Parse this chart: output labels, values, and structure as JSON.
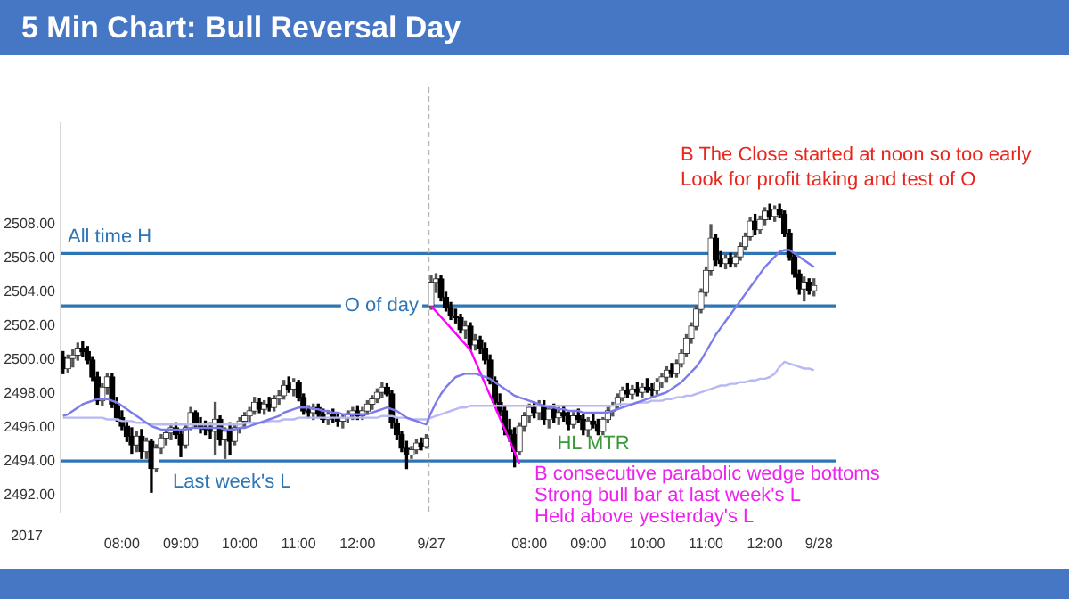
{
  "chart_data": {
    "type": "candlestick",
    "title": "5 Min Chart: Bull Reversal Day",
    "categories": [
      null,
      null,
      null,
      null,
      null,
      null,
      null,
      null,
      null,
      null,
      null,
      null,
      "08:00",
      null,
      null,
      null,
      null,
      null,
      null,
      null,
      null,
      null,
      null,
      null,
      "09:00",
      null,
      null,
      null,
      null,
      null,
      null,
      null,
      null,
      null,
      null,
      null,
      "10:00",
      null,
      null,
      null,
      null,
      null,
      null,
      null,
      null,
      null,
      null,
      null,
      "11:00",
      null,
      null,
      null,
      null,
      null,
      null,
      null,
      null,
      null,
      null,
      null,
      "12:00",
      null,
      null,
      null,
      null,
      null,
      null,
      null,
      null,
      null,
      null,
      null,
      null,
      null,
      null,
      "9/27",
      null,
      null,
      null,
      null,
      null,
      null,
      null,
      null,
      null,
      null,
      null,
      null,
      null,
      null,
      null,
      null,
      null,
      null,
      null,
      "08:00",
      null,
      null,
      null,
      null,
      null,
      null,
      null,
      null,
      null,
      null,
      null,
      "09:00",
      null,
      null,
      null,
      null,
      null,
      null,
      null,
      null,
      null,
      null,
      null,
      "10:00",
      null,
      null,
      null,
      null,
      null,
      null,
      null,
      null,
      null,
      null,
      null,
      "11:00",
      null,
      null,
      null,
      null,
      null,
      null,
      null,
      null,
      null,
      null,
      null,
      "12:00",
      null,
      null,
      null,
      null,
      null,
      null,
      null,
      null,
      null,
      null,
      "9/28"
    ],
    "ohlc": [
      [
        2500.2,
        2500.5,
        2499.2,
        2499.5
      ],
      [
        2499.5,
        2500.3,
        2499.3,
        2500.1
      ],
      [
        2500.1,
        2500.6,
        2499.6,
        2500.3
      ],
      [
        2500.3,
        2501.0,
        2500.0,
        2500.7
      ],
      [
        2500.7,
        2501.1,
        2500.2,
        2500.5
      ],
      [
        2500.5,
        2500.8,
        2499.8,
        2500.0
      ],
      [
        2500.0,
        2500.2,
        2498.8,
        2499.0
      ],
      [
        2499.0,
        2499.3,
        2497.4,
        2497.6
      ],
      [
        2497.6,
        2498.6,
        2497.3,
        2498.4
      ],
      [
        2498.4,
        2499.2,
        2498.0,
        2499.0
      ],
      [
        2499.0,
        2499.2,
        2497.2,
        2497.4
      ],
      [
        2497.4,
        2497.8,
        2496.4,
        2496.6
      ],
      [
        2496.6,
        2497.0,
        2495.9,
        2496.1
      ],
      [
        2496.1,
        2496.4,
        2495.2,
        2495.5
      ],
      [
        2495.5,
        2496.0,
        2494.5,
        2495.0
      ],
      [
        2495.0,
        2495.8,
        2494.6,
        2495.5
      ],
      [
        2495.5,
        2495.9,
        2494.2,
        2494.6
      ],
      [
        2494.6,
        2495.4,
        2494.2,
        2495.2
      ],
      [
        2495.2,
        2495.3,
        2492.2,
        2493.6
      ],
      [
        2493.6,
        2495.0,
        2493.4,
        2494.8
      ],
      [
        2494.8,
        2495.6,
        2494.5,
        2495.4
      ],
      [
        2495.4,
        2495.9,
        2495.0,
        2495.7
      ],
      [
        2495.7,
        2496.2,
        2495.3,
        2496.0
      ],
      [
        2496.0,
        2496.3,
        2495.4,
        2495.6
      ],
      [
        2495.6,
        2495.8,
        2494.3,
        2495.0
      ],
      [
        2495.0,
        2496.2,
        2494.8,
        2496.0
      ],
      [
        2496.0,
        2497.2,
        2495.9,
        2496.9
      ],
      [
        2496.9,
        2497.0,
        2496.0,
        2496.2
      ],
      [
        2496.2,
        2496.6,
        2495.7,
        2496.0
      ],
      [
        2496.0,
        2496.4,
        2495.6,
        2495.9
      ],
      [
        2495.9,
        2496.3,
        2495.4,
        2495.8
      ],
      [
        2495.8,
        2497.5,
        2494.4,
        2496.5
      ],
      [
        2496.5,
        2496.7,
        2495.0,
        2495.3
      ],
      [
        2495.3,
        2496.0,
        2494.2,
        2495.8
      ],
      [
        2495.8,
        2496.3,
        2494.4,
        2495.2
      ],
      [
        2495.2,
        2496.2,
        2495.0,
        2496.0
      ],
      [
        2496.0,
        2496.6,
        2495.7,
        2496.4
      ],
      [
        2496.4,
        2496.9,
        2496.1,
        2496.7
      ],
      [
        2496.7,
        2497.2,
        2496.4,
        2497.0
      ],
      [
        2497.0,
        2497.8,
        2496.8,
        2497.5
      ],
      [
        2497.5,
        2497.7,
        2496.9,
        2497.1
      ],
      [
        2497.1,
        2497.6,
        2496.8,
        2497.4
      ],
      [
        2497.4,
        2497.8,
        2497.0,
        2497.2
      ],
      [
        2497.2,
        2497.9,
        2497.0,
        2497.7
      ],
      [
        2497.7,
        2498.2,
        2497.4,
        2497.9
      ],
      [
        2497.9,
        2498.8,
        2497.7,
        2498.5
      ],
      [
        2498.5,
        2499.0,
        2498.1,
        2498.3
      ],
      [
        2498.3,
        2498.9,
        2497.9,
        2498.7
      ],
      [
        2498.7,
        2498.8,
        2497.6,
        2497.8
      ],
      [
        2497.8,
        2498.0,
        2496.8,
        2497.0
      ],
      [
        2497.0,
        2497.3,
        2496.6,
        2496.9
      ],
      [
        2496.9,
        2497.4,
        2496.5,
        2497.2
      ],
      [
        2497.2,
        2497.4,
        2496.6,
        2496.8
      ],
      [
        2496.8,
        2497.1,
        2496.3,
        2496.5
      ],
      [
        2496.5,
        2497.0,
        2496.2,
        2496.8
      ],
      [
        2496.8,
        2497.1,
        2496.3,
        2496.6
      ],
      [
        2496.6,
        2496.9,
        2496.1,
        2496.4
      ],
      [
        2496.4,
        2496.8,
        2496.0,
        2496.6
      ],
      [
        2496.6,
        2497.0,
        2496.3,
        2496.8
      ],
      [
        2496.8,
        2497.2,
        2496.5,
        2497.0
      ],
      [
        2497.0,
        2497.3,
        2496.5,
        2496.7
      ],
      [
        2496.7,
        2497.2,
        2496.5,
        2497.0
      ],
      [
        2497.0,
        2497.6,
        2496.8,
        2497.4
      ],
      [
        2497.4,
        2497.9,
        2497.1,
        2497.7
      ],
      [
        2497.7,
        2498.3,
        2497.5,
        2498.1
      ],
      [
        2498.1,
        2498.7,
        2497.8,
        2498.4
      ],
      [
        2498.4,
        2498.6,
        2497.9,
        2498.0
      ],
      [
        2498.0,
        2498.2,
        2496.0,
        2496.3
      ],
      [
        2496.3,
        2496.6,
        2495.3,
        2495.6
      ],
      [
        2495.6,
        2495.8,
        2494.6,
        2494.8
      ],
      [
        2494.8,
        2495.2,
        2493.6,
        2494.4
      ],
      [
        2494.4,
        2494.9,
        2494.2,
        2494.7
      ],
      [
        2494.7,
        2495.3,
        2494.5,
        2495.1
      ],
      [
        2495.1,
        2495.4,
        2494.7,
        2494.9
      ],
      [
        2494.9,
        2495.6,
        2494.8,
        2495.4
      ],
      [
        2503.2,
        2505.0,
        2503.0,
        2504.6
      ],
      [
        2504.6,
        2505.1,
        2504.0,
        2504.8
      ],
      [
        2504.8,
        2505.0,
        2503.5,
        2503.7
      ],
      [
        2503.7,
        2504.0,
        2502.9,
        2503.1
      ],
      [
        2503.1,
        2503.4,
        2502.4,
        2502.6
      ],
      [
        2502.6,
        2503.0,
        2502.2,
        2502.5
      ],
      [
        2502.5,
        2502.7,
        2501.6,
        2501.8
      ],
      [
        2501.8,
        2502.3,
        2501.3,
        2502.0
      ],
      [
        2502.0,
        2502.2,
        2500.6,
        2500.9
      ],
      [
        2500.9,
        2501.5,
        2500.6,
        2501.2
      ],
      [
        2501.2,
        2501.4,
        2500.4,
        2500.7
      ],
      [
        2500.7,
        2501.0,
        2499.8,
        2500.0
      ],
      [
        2500.0,
        2500.3,
        2498.6,
        2498.8
      ],
      [
        2498.8,
        2499.0,
        2497.2,
        2497.5
      ],
      [
        2497.5,
        2498.0,
        2496.7,
        2497.0
      ],
      [
        2497.0,
        2497.3,
        2495.6,
        2495.9
      ],
      [
        2495.9,
        2496.5,
        2495.2,
        2495.6
      ],
      [
        2495.6,
        2496.0,
        2493.7,
        2494.6
      ],
      [
        2494.6,
        2496.3,
        2494.4,
        2496.1
      ],
      [
        2496.1,
        2496.9,
        2495.8,
        2496.7
      ],
      [
        2496.7,
        2497.4,
        2496.3,
        2497.2
      ],
      [
        2497.2,
        2497.5,
        2496.6,
        2496.9
      ],
      [
        2496.9,
        2497.6,
        2496.5,
        2497.3
      ],
      [
        2497.3,
        2497.6,
        2496.2,
        2496.5
      ],
      [
        2496.5,
        2497.3,
        2496.0,
        2497.1
      ],
      [
        2497.1,
        2497.4,
        2496.3,
        2496.6
      ],
      [
        2496.6,
        2497.2,
        2496.2,
        2496.9
      ],
      [
        2496.9,
        2497.3,
        2496.4,
        2496.7
      ],
      [
        2496.7,
        2497.0,
        2495.9,
        2496.2
      ],
      [
        2496.2,
        2496.9,
        2496.0,
        2496.7
      ],
      [
        2496.7,
        2497.1,
        2496.3,
        2496.5
      ],
      [
        2496.5,
        2496.8,
        2495.6,
        2495.9
      ],
      [
        2495.9,
        2496.6,
        2495.5,
        2496.4
      ],
      [
        2496.4,
        2496.9,
        2496.0,
        2496.2
      ],
      [
        2496.2,
        2496.5,
        2495.6,
        2495.8
      ],
      [
        2495.8,
        2496.6,
        2495.6,
        2496.5
      ],
      [
        2496.5,
        2497.2,
        2496.3,
        2497.0
      ],
      [
        2497.0,
        2497.5,
        2496.7,
        2497.3
      ],
      [
        2497.3,
        2498.0,
        2497.1,
        2497.8
      ],
      [
        2497.8,
        2498.4,
        2497.6,
        2498.2
      ],
      [
        2498.2,
        2498.6,
        2497.8,
        2498.0
      ],
      [
        2498.0,
        2498.5,
        2497.7,
        2498.3
      ],
      [
        2498.3,
        2498.7,
        2497.9,
        2498.1
      ],
      [
        2498.1,
        2498.6,
        2497.8,
        2498.4
      ],
      [
        2498.4,
        2498.9,
        2498.1,
        2498.3
      ],
      [
        2498.3,
        2498.6,
        2497.9,
        2498.2
      ],
      [
        2498.2,
        2498.9,
        2498.0,
        2498.7
      ],
      [
        2498.7,
        2499.2,
        2498.4,
        2499.0
      ],
      [
        2499.0,
        2499.6,
        2498.7,
        2499.4
      ],
      [
        2499.4,
        2499.8,
        2499.0,
        2499.2
      ],
      [
        2499.2,
        2500.0,
        2499.0,
        2499.8
      ],
      [
        2499.8,
        2500.6,
        2499.6,
        2500.4
      ],
      [
        2500.4,
        2501.5,
        2500.2,
        2501.3
      ],
      [
        2501.3,
        2502.2,
        2501.0,
        2502.0
      ],
      [
        2502.0,
        2503.2,
        2501.8,
        2503.0
      ],
      [
        2503.0,
        2504.2,
        2502.8,
        2504.0
      ],
      [
        2504.0,
        2505.5,
        2503.8,
        2505.3
      ],
      [
        2505.3,
        2508.0,
        2505.0,
        2507.2
      ],
      [
        2507.2,
        2507.4,
        2505.6,
        2505.9
      ],
      [
        2505.9,
        2506.4,
        2505.5,
        2505.7
      ],
      [
        2505.7,
        2506.2,
        2505.4,
        2506.0
      ],
      [
        2506.0,
        2506.3,
        2505.5,
        2505.7
      ],
      [
        2505.7,
        2506.3,
        2505.5,
        2506.1
      ],
      [
        2506.1,
        2506.9,
        2505.9,
        2506.7
      ],
      [
        2506.7,
        2507.5,
        2506.5,
        2507.3
      ],
      [
        2507.3,
        2508.4,
        2507.1,
        2508.2
      ],
      [
        2508.2,
        2508.6,
        2507.4,
        2507.7
      ],
      [
        2507.7,
        2508.5,
        2507.5,
        2508.3
      ],
      [
        2508.3,
        2509.0,
        2508.0,
        2508.8
      ],
      [
        2508.8,
        2509.2,
        2508.3,
        2508.5
      ],
      [
        2508.5,
        2509.1,
        2508.2,
        2508.9
      ],
      [
        2508.9,
        2509.2,
        2508.4,
        2508.6
      ],
      [
        2508.6,
        2508.8,
        2507.3,
        2507.5
      ],
      [
        2507.5,
        2507.7,
        2505.9,
        2506.1
      ],
      [
        2506.1,
        2506.3,
        2504.9,
        2505.1
      ],
      [
        2505.1,
        2505.3,
        2503.9,
        2504.2
      ],
      [
        2504.2,
        2504.9,
        2503.5,
        2504.6
      ],
      [
        2504.6,
        2504.8,
        2503.9,
        2504.1
      ],
      [
        2504.1,
        2504.8,
        2503.8,
        2504.4
      ],
      null
    ],
    "series": [
      {
        "type": "line",
        "color": "#7b7bea",
        "values": [
          2496.7,
          2496.8,
          2497.0,
          2497.2,
          2497.4,
          2497.5,
          2497.6,
          2497.7,
          2497.7,
          2497.7,
          2497.6,
          2497.5,
          2497.3,
          2497.1,
          2496.9,
          2496.7,
          2496.5,
          2496.3,
          2496.1,
          2496.0,
          2495.9,
          2495.9,
          2495.9,
          2495.9,
          2495.9,
          2495.9,
          2496.0,
          2496.0,
          2496.0,
          2496.0,
          2496.0,
          2496.0,
          2496.0,
          2495.9,
          2495.9,
          2495.9,
          2496.0,
          2496.0,
          2496.1,
          2496.2,
          2496.3,
          2496.4,
          2496.5,
          2496.6,
          2496.7,
          2496.9,
          2497.0,
          2497.1,
          2497.2,
          2497.2,
          2497.2,
          2497.1,
          2497.1,
          2497.0,
          2497.0,
          2496.9,
          2496.9,
          2496.8,
          2496.8,
          2496.8,
          2496.8,
          2496.8,
          2496.8,
          2496.9,
          2497.0,
          2497.1,
          2497.2,
          2497.1,
          2497.0,
          2496.8,
          2496.6,
          2496.5,
          2496.4,
          2496.3,
          2496.2,
          2496.9,
          2497.5,
          2498.0,
          2498.4,
          2498.7,
          2499.0,
          2499.1,
          2499.2,
          2499.2,
          2499.2,
          2499.1,
          2499.0,
          2498.9,
          2498.7,
          2498.5,
          2498.3,
          2498.1,
          2497.9,
          2497.8,
          2497.7,
          2497.6,
          2497.5,
          2497.4,
          2497.3,
          2497.2,
          2497.2,
          2497.1,
          2497.1,
          2497.0,
          2497.0,
          2497.0,
          2496.9,
          2496.9,
          2496.9,
          2496.9,
          2496.9,
          2496.9,
          2497.0,
          2497.1,
          2497.2,
          2497.3,
          2497.4,
          2497.5,
          2497.6,
          2497.7,
          2497.8,
          2497.9,
          2498.0,
          2498.1,
          2498.3,
          2498.5,
          2498.7,
          2499.0,
          2499.3,
          2499.6,
          2500.0,
          2500.5,
          2501.0,
          2501.5,
          2501.9,
          2502.3,
          2502.7,
          2503.1,
          2503.5,
          2503.9,
          2504.3,
          2504.7,
          2505.1,
          2505.5,
          2505.8,
          2506.1,
          2506.4,
          2506.5,
          2506.5,
          2506.3,
          2506.1,
          2505.9,
          2505.7,
          2505.5,
          null
        ]
      },
      {
        "type": "line",
        "color": "#b8b8f4",
        "values": [
          2496.6,
          2496.6,
          2496.6,
          2496.6,
          2496.6,
          2496.6,
          2496.6,
          2496.6,
          2496.6,
          2496.5,
          2496.5,
          2496.5,
          2496.4,
          2496.4,
          2496.4,
          2496.3,
          2496.3,
          2496.3,
          2496.2,
          2496.2,
          2496.2,
          2496.2,
          2496.2,
          2496.2,
          2496.2,
          2496.2,
          2496.2,
          2496.2,
          2496.2,
          2496.2,
          2496.2,
          2496.2,
          2496.2,
          2496.2,
          2496.2,
          2496.2,
          2496.2,
          2496.3,
          2496.3,
          2496.3,
          2496.3,
          2496.3,
          2496.4,
          2496.4,
          2496.4,
          2496.5,
          2496.5,
          2496.5,
          2496.6,
          2496.6,
          2496.6,
          2496.6,
          2496.6,
          2496.6,
          2496.6,
          2496.6,
          2496.6,
          2496.6,
          2496.6,
          2496.6,
          2496.6,
          2496.6,
          2496.6,
          2496.6,
          2496.6,
          2496.7,
          2496.7,
          2496.7,
          2496.6,
          2496.6,
          2496.6,
          2496.5,
          2496.5,
          2496.5,
          2496.5,
          2496.6,
          2496.7,
          2496.8,
          2496.9,
          2497.0,
          2497.1,
          2497.2,
          2497.2,
          2497.3,
          2497.3,
          2497.3,
          2497.3,
          2497.3,
          2497.3,
          2497.3,
          2497.3,
          2497.3,
          2497.3,
          2497.3,
          2497.3,
          2497.3,
          2497.3,
          2497.3,
          2497.3,
          2497.3,
          2497.3,
          2497.3,
          2497.3,
          2497.3,
          2497.3,
          2497.3,
          2497.3,
          2497.3,
          2497.3,
          2497.3,
          2497.3,
          2497.3,
          2497.3,
          2497.4,
          2497.4,
          2497.4,
          2497.4,
          2497.5,
          2497.5,
          2497.5,
          2497.6,
          2497.6,
          2497.6,
          2497.7,
          2497.7,
          2497.8,
          2497.8,
          2497.9,
          2497.9,
          2498.0,
          2498.1,
          2498.2,
          2498.3,
          2498.4,
          2498.5,
          2498.5,
          2498.6,
          2498.6,
          2498.7,
          2498.7,
          2498.8,
          2498.8,
          2498.9,
          2498.9,
          2499.0,
          2499.2,
          2499.6,
          2499.9,
          2499.8,
          2499.7,
          2499.6,
          2499.5,
          2499.5,
          2499.4,
          null
        ]
      },
      {
        "type": "line",
        "color": "#ff00ff",
        "values": [
          null,
          null,
          null,
          null,
          null,
          null,
          null,
          null,
          null,
          null,
          null,
          null,
          null,
          null,
          null,
          null,
          null,
          null,
          null,
          null,
          null,
          null,
          null,
          null,
          null,
          null,
          null,
          null,
          null,
          null,
          null,
          null,
          null,
          null,
          null,
          null,
          null,
          null,
          null,
          null,
          null,
          null,
          null,
          null,
          null,
          null,
          null,
          null,
          null,
          null,
          null,
          null,
          null,
          null,
          null,
          null,
          null,
          null,
          null,
          null,
          null,
          null,
          null,
          null,
          null,
          null,
          null,
          null,
          null,
          null,
          null,
          null,
          null,
          null,
          null,
          2503.2,
          null,
          null,
          null,
          null,
          null,
          null,
          null,
          2500.6,
          null,
          null,
          null,
          null,
          null,
          null,
          null,
          null,
          null,
          2493.9,
          null,
          null,
          null,
          null,
          null,
          null,
          null,
          null,
          null,
          null,
          null,
          null,
          null,
          null,
          null,
          null,
          null,
          null,
          null,
          null,
          null,
          null,
          null,
          null,
          null,
          null,
          null,
          null,
          null,
          null,
          null,
          null,
          null,
          null,
          null,
          null,
          null,
          null,
          null,
          null,
          null,
          null,
          null,
          null,
          null,
          null,
          null,
          null,
          null,
          null,
          null,
          null,
          null,
          null,
          null,
          null,
          null,
          null,
          null,
          null,
          null
        ]
      }
    ],
    "ylim": [
      2491,
      2514
    ],
    "yticks": [
      {
        "value": 2492,
        "label": "2492.00"
      },
      {
        "value": 2494,
        "label": "2494.00"
      },
      {
        "value": 2496,
        "label": "2496.00"
      },
      {
        "value": 2498,
        "label": "2498.00"
      },
      {
        "value": 2500,
        "label": "2500.00"
      },
      {
        "value": 2502,
        "label": "2502.00"
      },
      {
        "value": 2504,
        "label": "2504.00"
      },
      {
        "value": 2506,
        "label": "2506.00"
      },
      {
        "value": 2508,
        "label": "2508.00"
      }
    ],
    "ref_lines": [
      {
        "axis": "y",
        "value": 2506.3,
        "label": "All time H",
        "color": "#2e75b6"
      },
      {
        "axis": "y",
        "value": 2503.2,
        "label": "O of day",
        "color": "#2e75b6"
      },
      {
        "axis": "y",
        "value": 2494.05,
        "label": "Last week's L",
        "color": "#2e75b6"
      },
      {
        "axis": "x",
        "value": "9/27",
        "color": "#b4b4b4",
        "line_style": "dashed"
      }
    ],
    "annotations": [
      "B The Close started at noon so too early",
      "Look for profit taking and test of O",
      "B consecutive parabolic wedge bottoms",
      "Strong bull bar at last week's L",
      "Held above yesterday's L",
      "HL MTR",
      "2017"
    ]
  }
}
